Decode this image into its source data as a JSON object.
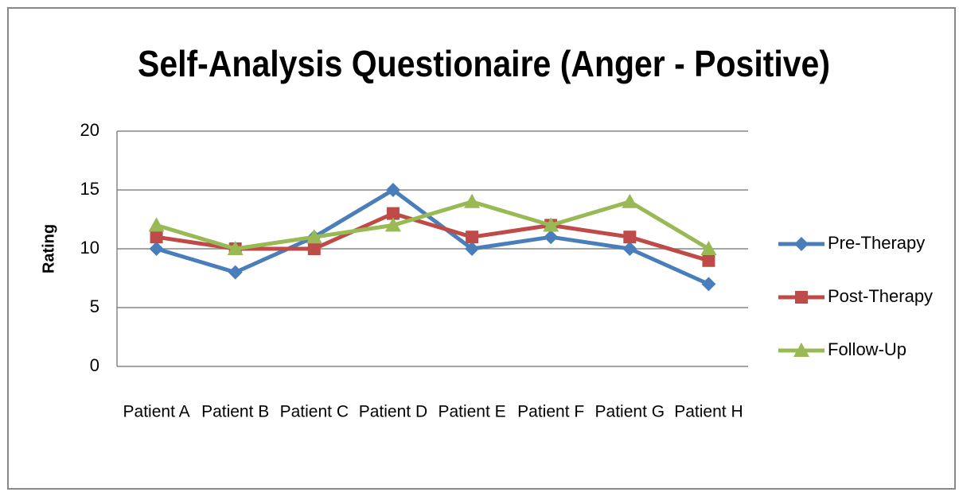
{
  "chart_data": {
    "type": "line",
    "title": "Self-Analysis Questionaire (Anger - Positive)",
    "y_label": "Rating",
    "categories": [
      "Patient A",
      "Patient B",
      "Patient C",
      "Patient D",
      "Patient E",
      "Patient F",
      "Patient G",
      "Patient H"
    ],
    "series": [
      {
        "name": "Pre-Therapy",
        "color": "#4a7ebb",
        "marker": "diamond",
        "values": [
          10,
          8,
          11,
          15,
          10,
          11,
          10,
          7
        ]
      },
      {
        "name": "Post-Therapy",
        "color": "#be4b48",
        "marker": "square",
        "values": [
          11,
          10,
          10,
          13,
          11,
          12,
          11,
          9
        ]
      },
      {
        "name": "Follow-Up",
        "color": "#98b954",
        "marker": "triangle",
        "values": [
          12,
          10,
          11,
          12,
          14,
          12,
          14,
          10
        ]
      }
    ],
    "ylim": [
      0,
      20
    ],
    "yticks": [
      0,
      5,
      10,
      15,
      20
    ],
    "grid": true,
    "legend": "right"
  }
}
